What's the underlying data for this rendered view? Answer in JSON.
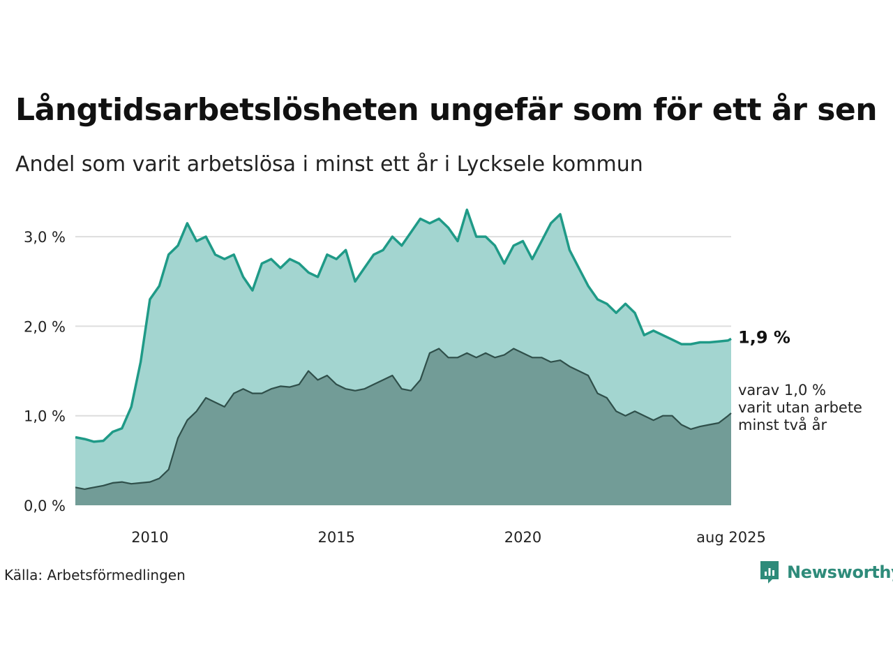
{
  "header": {
    "title": "Långtidsarbetslösheten ungefär som för ett år sen",
    "subtitle": "Andel som varit arbetslösa i minst ett år i Lycksele kommun"
  },
  "footer": {
    "source": "Källa: Arbetsförmedlingen",
    "logo_text": "Newsworthy"
  },
  "colors": {
    "upper_fill": "#a3d5d0",
    "upper_line": "#1f9a87",
    "lower_fill": "#729c97",
    "lower_line": "#2f4f4a",
    "grid": "#dddddd"
  },
  "chart_data": {
    "type": "area",
    "title": "Långtidsarbetslösheten ungefär som för ett år sen",
    "subtitle": "Andel som varit arbetslösa i minst ett år i Lycksele kommun",
    "y_unit": "%",
    "ylim": [
      0,
      3.4
    ],
    "y_ticks": [
      0,
      1,
      2,
      3
    ],
    "y_tick_labels": [
      "0,0 %",
      "1,0 %",
      "2,0 %",
      "3,0 %"
    ],
    "x_range": [
      2008.0,
      2025.583
    ],
    "x_ticks": [
      2010,
      2015,
      2020,
      2025.583
    ],
    "x_tick_labels": [
      "2010",
      "2015",
      "2020",
      "aug 2025"
    ],
    "grid": "horizontal",
    "end_labels": {
      "main": "1,9 %",
      "sub_lines": [
        "varav 1,0 %",
        "varit utan arbete",
        "minst två år"
      ]
    },
    "series": [
      {
        "key": "minst_ett_ar",
        "x": [
          2008.0,
          2008.25,
          2008.5,
          2008.75,
          2009.0,
          2009.25,
          2009.5,
          2009.75,
          2010.0,
          2010.25,
          2010.5,
          2010.75,
          2011.0,
          2011.25,
          2011.5,
          2011.75,
          2012.0,
          2012.25,
          2012.5,
          2012.75,
          2013.0,
          2013.25,
          2013.5,
          2013.75,
          2014.0,
          2014.25,
          2014.5,
          2014.75,
          2015.0,
          2015.25,
          2015.5,
          2015.75,
          2016.0,
          2016.25,
          2016.5,
          2016.75,
          2017.0,
          2017.25,
          2017.5,
          2017.75,
          2018.0,
          2018.25,
          2018.5,
          2018.75,
          2019.0,
          2019.25,
          2019.5,
          2019.75,
          2020.0,
          2020.25,
          2020.5,
          2020.75,
          2021.0,
          2021.25,
          2021.5,
          2021.75,
          2022.0,
          2022.25,
          2022.5,
          2022.75,
          2023.0,
          2023.25,
          2023.5,
          2023.75,
          2024.0,
          2024.25,
          2024.5,
          2024.75,
          2025.0,
          2025.25,
          2025.5,
          2025.583
        ],
        "values": [
          0.76,
          0.74,
          0.71,
          0.72,
          0.82,
          0.86,
          1.1,
          1.6,
          2.3,
          2.45,
          2.8,
          2.9,
          3.15,
          2.95,
          3.0,
          2.8,
          2.75,
          2.8,
          2.55,
          2.4,
          2.7,
          2.75,
          2.65,
          2.75,
          2.7,
          2.6,
          2.55,
          2.8,
          2.75,
          2.85,
          2.5,
          2.65,
          2.8,
          2.85,
          3.0,
          2.9,
          3.05,
          3.2,
          3.15,
          3.2,
          3.1,
          2.95,
          3.3,
          3.0,
          3.0,
          2.9,
          2.7,
          2.9,
          2.95,
          2.75,
          2.95,
          3.15,
          3.25,
          2.85,
          2.65,
          2.45,
          2.3,
          2.25,
          2.15,
          2.25,
          2.15,
          1.9,
          1.95,
          1.9,
          1.85,
          1.8,
          1.8,
          1.82,
          1.82,
          1.83,
          1.84,
          1.86
        ]
      },
      {
        "key": "minst_tva_ar",
        "x": [
          2008.0,
          2008.25,
          2008.5,
          2008.75,
          2009.0,
          2009.25,
          2009.5,
          2009.75,
          2010.0,
          2010.25,
          2010.5,
          2010.75,
          2011.0,
          2011.25,
          2011.5,
          2011.75,
          2012.0,
          2012.25,
          2012.5,
          2012.75,
          2013.0,
          2013.25,
          2013.5,
          2013.75,
          2014.0,
          2014.25,
          2014.5,
          2014.75,
          2015.0,
          2015.25,
          2015.5,
          2015.75,
          2016.0,
          2016.25,
          2016.5,
          2016.75,
          2017.0,
          2017.25,
          2017.5,
          2017.75,
          2018.0,
          2018.25,
          2018.5,
          2018.75,
          2019.0,
          2019.25,
          2019.5,
          2019.75,
          2020.0,
          2020.25,
          2020.5,
          2020.75,
          2021.0,
          2021.25,
          2021.5,
          2021.75,
          2022.0,
          2022.25,
          2022.5,
          2022.75,
          2023.0,
          2023.25,
          2023.5,
          2023.75,
          2024.0,
          2024.25,
          2024.5,
          2024.75,
          2025.0,
          2025.25,
          2025.5,
          2025.583
        ],
        "values": [
          0.2,
          0.18,
          0.2,
          0.22,
          0.25,
          0.26,
          0.24,
          0.25,
          0.26,
          0.3,
          0.4,
          0.75,
          0.95,
          1.05,
          1.2,
          1.15,
          1.1,
          1.25,
          1.3,
          1.25,
          1.25,
          1.3,
          1.33,
          1.32,
          1.35,
          1.5,
          1.4,
          1.45,
          1.35,
          1.3,
          1.28,
          1.3,
          1.35,
          1.4,
          1.45,
          1.3,
          1.28,
          1.4,
          1.7,
          1.75,
          1.65,
          1.65,
          1.7,
          1.65,
          1.7,
          1.65,
          1.68,
          1.75,
          1.7,
          1.65,
          1.65,
          1.6,
          1.62,
          1.55,
          1.5,
          1.45,
          1.25,
          1.2,
          1.05,
          1.0,
          1.05,
          1.0,
          0.95,
          1.0,
          1.0,
          0.9,
          0.85,
          0.88,
          0.9,
          0.92,
          1.0,
          1.03
        ]
      }
    ]
  }
}
